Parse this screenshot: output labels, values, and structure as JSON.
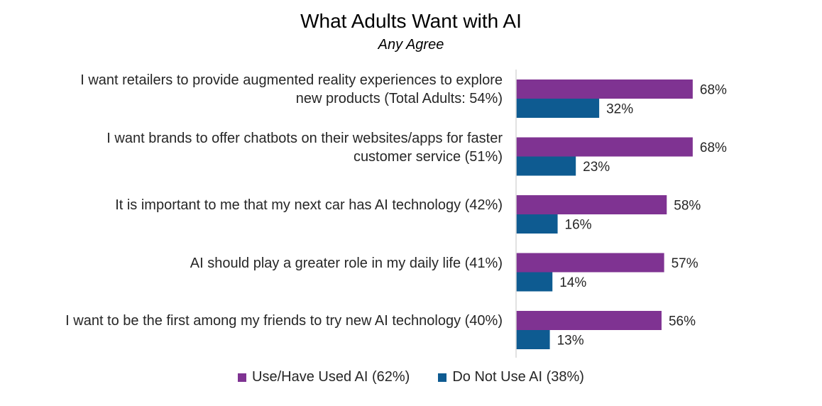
{
  "chart_data": {
    "type": "bar",
    "orientation": "horizontal",
    "title": "What Adults Want with AI",
    "subtitle": "Any Agree",
    "categories": [
      "I want retailers to provide augmented reality experiences to explore\nnew products (Total Adults: 54%)",
      "I want brands to offer chatbots on their websites/apps for faster\ncustomer service (51%)",
      "It is important to me that my next car has AI technology (42%)",
      "AI should play a greater role in my daily life (41%)",
      "I want to be the first among my friends to try new AI technology (40%)"
    ],
    "series": [
      {
        "name": "Use/Have Used AI (62%)",
        "values": [
          68,
          68,
          58,
          57,
          56
        ],
        "labels": [
          "68%",
          "68%",
          "58%",
          "57%",
          "56%"
        ],
        "color": "#7F3392"
      },
      {
        "name": "Do Not Use AI (38%)",
        "values": [
          32,
          23,
          16,
          14,
          13
        ],
        "labels": [
          "32%",
          "23%",
          "16%",
          "14%",
          "13%"
        ],
        "color": "#0E5B91"
      }
    ],
    "xlim": [
      0,
      100
    ],
    "grid": false,
    "legend_position": "bottom",
    "axis_color": "#D9D9D9"
  }
}
